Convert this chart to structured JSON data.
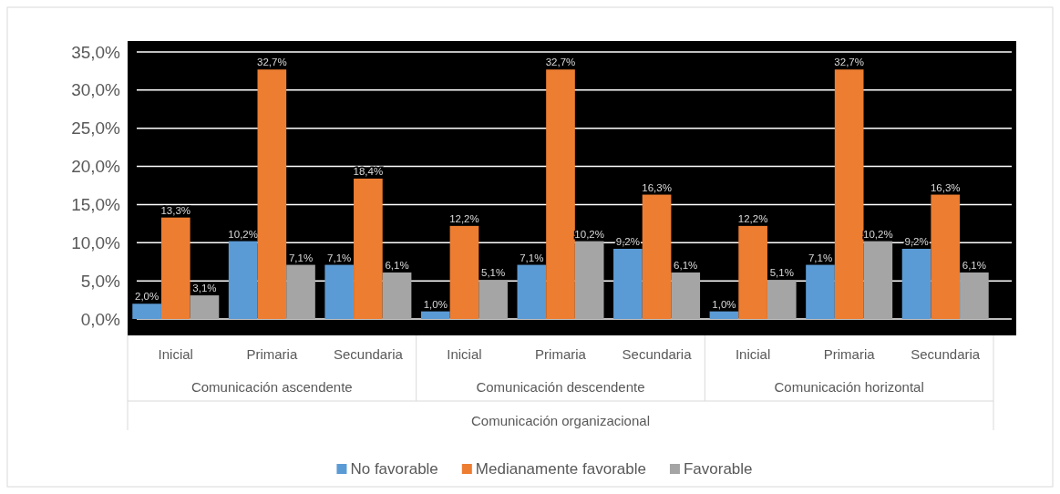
{
  "chart_data": {
    "type": "bar",
    "xlabel": "Comunicación organizacional",
    "categories": [
      "Inicial",
      "Primaria",
      "Secundaria",
      "Inicial",
      "Primaria",
      "Secundaria",
      "Inicial",
      "Primaria",
      "Secundaria"
    ],
    "annotations": [
      "Comunicación ascendente",
      "Comunicación descendente",
      "Comunicación horizontal"
    ],
    "series": [
      {
        "name": "No favorable",
        "color": "#5b9bd5",
        "values": [
          2.0,
          10.2,
          7.1,
          1.0,
          7.1,
          9.2,
          1.0,
          7.1,
          9.2
        ],
        "value_labels": [
          "2,0%",
          "10,2%",
          "7,1%",
          "1,0%",
          "7,1%",
          "9,2%",
          "1,0%",
          "7,1%",
          "9,2%"
        ]
      },
      {
        "name": "Medianamente favorable",
        "color": "#ed7d31",
        "values": [
          13.3,
          32.7,
          18.4,
          12.2,
          32.7,
          16.3,
          12.2,
          32.7,
          16.3
        ],
        "value_labels": [
          "13,3%",
          "32,7%",
          "18,4%",
          "12,2%",
          "32,7%",
          "16,3%",
          "12,2%",
          "32,7%",
          "16,3%"
        ]
      },
      {
        "name": "Favorable",
        "color": "#a5a5a5",
        "values": [
          3.1,
          7.1,
          6.1,
          5.1,
          10.2,
          6.1,
          5.1,
          10.2,
          6.1
        ],
        "value_labels": [
          "3,1%",
          "7,1%",
          "6,1%",
          "5,1%",
          "10,2%",
          "6,1%",
          "5,1%",
          "10,2%",
          "6,1%"
        ]
      }
    ],
    "ylim": [
      0,
      35
    ],
    "yticks": [
      {
        "value": 0,
        "label": "0,0%"
      },
      {
        "value": 5,
        "label": "5,0%"
      },
      {
        "value": 10,
        "label": "10,0%"
      },
      {
        "value": 15,
        "label": "15,0%"
      },
      {
        "value": 20,
        "label": "20,0%"
      },
      {
        "value": 25,
        "label": "25,0%"
      },
      {
        "value": 30,
        "label": "30,0%"
      },
      {
        "value": 35,
        "label": "35,0%"
      }
    ],
    "grid": "y",
    "legend": "bottom"
  }
}
